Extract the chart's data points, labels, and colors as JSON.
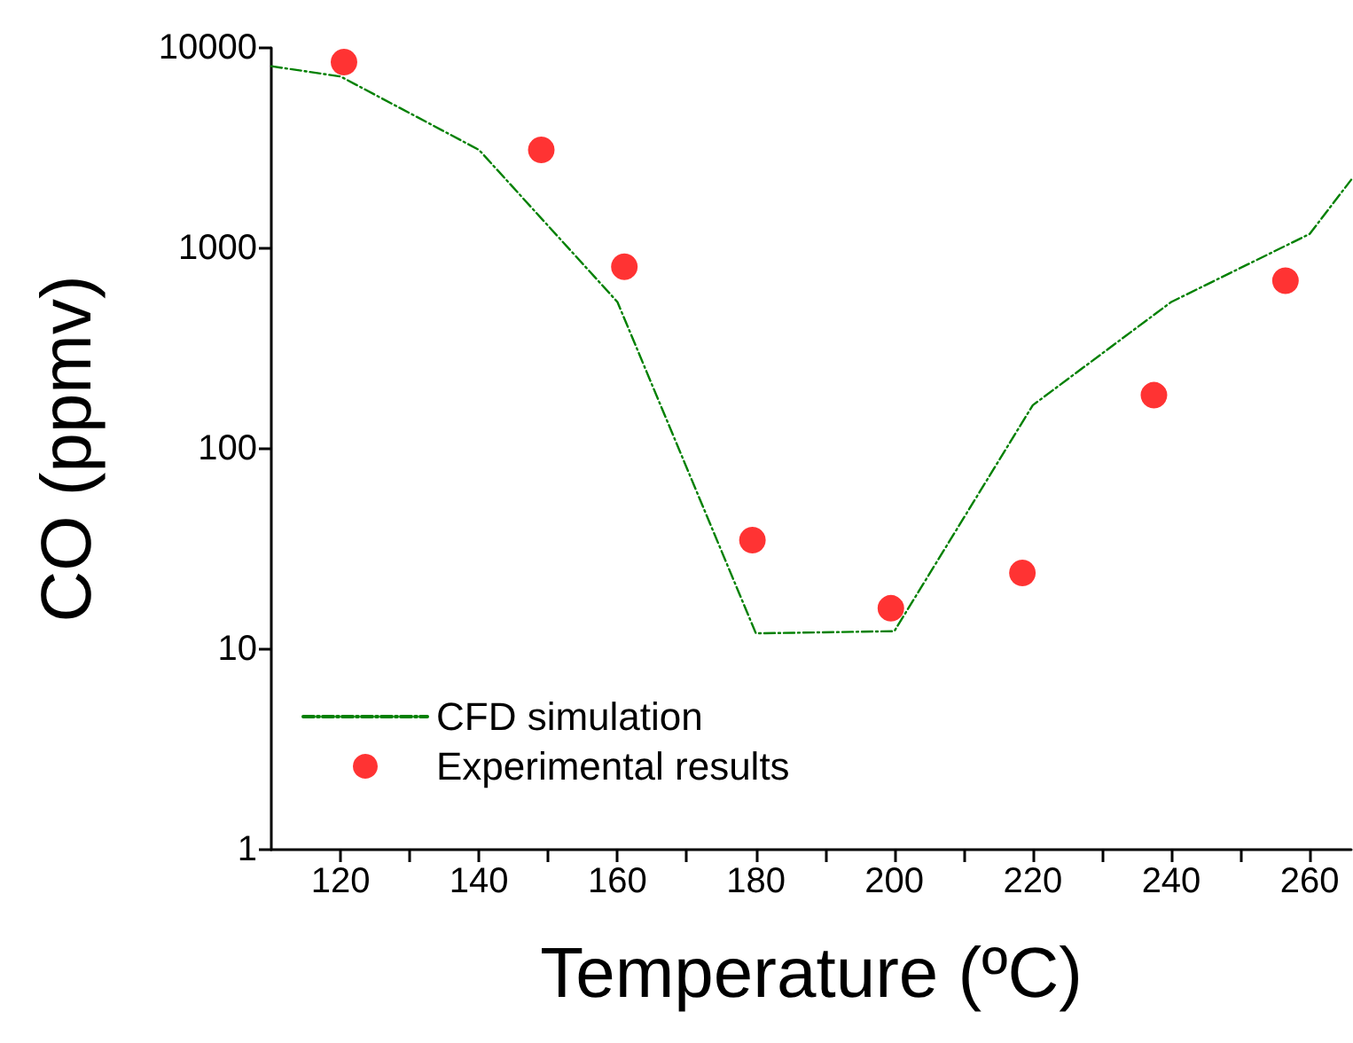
{
  "chart_data": {
    "type": "line",
    "xlabel": "Temperature (ºC)",
    "ylabel": "CO (ppmv)",
    "xlim": [
      110,
      266
    ],
    "ylim": [
      1,
      10000
    ],
    "log": "y",
    "xticks": [
      120,
      {
        "value": 130,
        "label": null
      },
      140,
      {
        "value": 150,
        "label": null
      },
      160,
      {
        "value": 170,
        "label": null
      },
      180,
      {
        "value": 190,
        "label": null
      },
      200,
      {
        "value": 210,
        "label": null
      },
      220,
      {
        "value": 230,
        "label": null
      },
      240,
      {
        "value": 250,
        "label": null
      },
      260
    ],
    "yticks": [
      1,
      10,
      100,
      1000,
      10000
    ],
    "grid": false,
    "legend": "bottom left",
    "series": [
      {
        "name": "CFD simulation",
        "color": "#008000",
        "line_style": "dashed",
        "marker": "none",
        "x": [
          110,
          120,
          140,
          160,
          180,
          200,
          220,
          240,
          260,
          266
        ],
        "values": [
          8100,
          7200,
          3100,
          540,
          12,
          12.3,
          165,
          540,
          1180,
          2200
        ]
      },
      {
        "name": "Experimental results",
        "type": "scatter",
        "color": "#ff0000",
        "marker": "circle",
        "x": [
          120.5,
          149,
          161,
          179.5,
          199.5,
          218.5,
          237.5,
          256.5
        ],
        "values": [
          8500,
          3100,
          810,
          35,
          16,
          24,
          185,
          690
        ]
      }
    ]
  }
}
